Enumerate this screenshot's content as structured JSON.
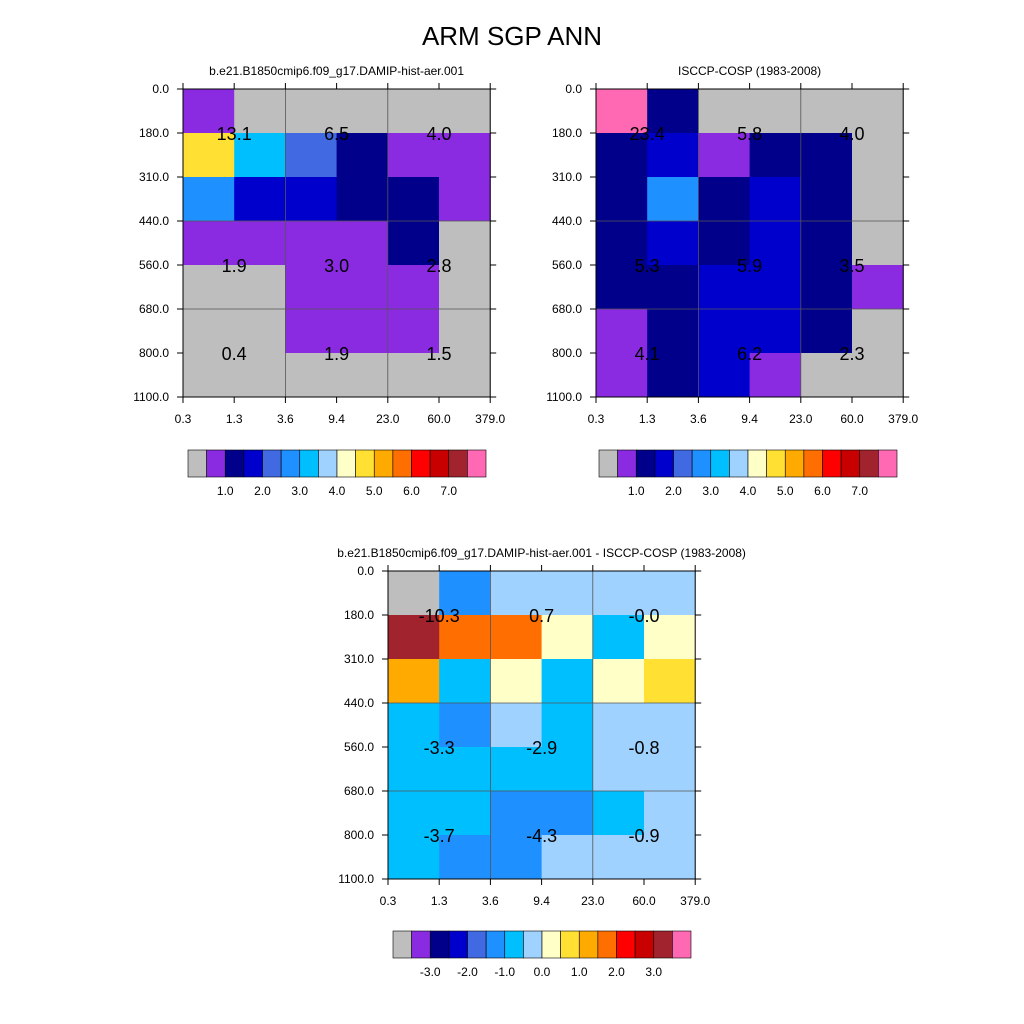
{
  "title": "ARM SGP ANN",
  "chart_data": [
    {
      "type": "heatmap",
      "title": "b.e21.B1850cmip6.f09_g17.DAMIP-hist-aer.001",
      "x_ticks": [
        "0.3",
        "1.3",
        "3.6",
        "9.4",
        "23.0",
        "60.0",
        "379.0"
      ],
      "y_ticks": [
        "0.0",
        "180.0",
        "310.0",
        "440.0",
        "560.0",
        "680.0",
        "800.0",
        "1100.0"
      ],
      "cells": [
        [
          "#bebebe",
          "#bebebe",
          "#bebebe",
          "#bebebe",
          "#bebebe",
          "#bebebe"
        ],
        [
          "#ffe033",
          "#00bfff",
          "#4169e1",
          "#00008b",
          "#8a2be2",
          "#8a2be2"
        ],
        [
          "#1e90ff",
          "#0000cd",
          "#0000cd",
          "#00008b",
          "#00008b",
          "#8a2be2"
        ],
        [
          "#8a2be2",
          "#8a2be2",
          "#8a2be2",
          "#8a2be2",
          "#00008b",
          "#bebebe"
        ],
        [
          "#bebebe",
          "#bebebe",
          "#8a2be2",
          "#8a2be2",
          "#8a2be2",
          "#bebebe"
        ],
        [
          "#bebebe",
          "#bebebe",
          "#8a2be2",
          "#8a2be2",
          "#8a2be2",
          "#bebebe"
        ],
        [
          "#bebebe",
          "#bebebe",
          "#bebebe",
          "#bebebe",
          "#bebebe",
          "#bebebe"
        ]
      ],
      "first_cell": "#8a2be2",
      "labels": [
        {
          "text": "13.1",
          "col": 1,
          "row": 1
        },
        {
          "text": "6.5",
          "col": 3,
          "row": 1
        },
        {
          "text": "4.0",
          "col": 5,
          "row": 1
        },
        {
          "text": "1.9",
          "col": 1,
          "row": 4
        },
        {
          "text": "3.0",
          "col": 3,
          "row": 4
        },
        {
          "text": "2.8",
          "col": 5,
          "row": 4
        },
        {
          "text": "0.4",
          "col": 1,
          "row": 6
        },
        {
          "text": "1.9",
          "col": 3,
          "row": 6
        },
        {
          "text": "1.5",
          "col": 5,
          "row": 6
        }
      ],
      "colorbar": {
        "colors": [
          "#bebebe",
          "#8a2be2",
          "#00008b",
          "#0000cd",
          "#4169e1",
          "#1e90ff",
          "#00bfff",
          "#a0d2ff",
          "#ffffc8",
          "#ffe033",
          "#ffaa00",
          "#ff6e00",
          "#ff0000",
          "#c80000",
          "#a0232d",
          "#ff69b4"
        ],
        "labels": [
          "1.0",
          "2.0",
          "3.0",
          "4.0",
          "5.0",
          "6.0",
          "7.0"
        ]
      }
    },
    {
      "type": "heatmap",
      "title": "ISCCP-COSP (1983-2008)",
      "x_ticks": [
        "0.3",
        "1.3",
        "3.6",
        "9.4",
        "23.0",
        "60.0",
        "379.0"
      ],
      "y_ticks": [
        "0.0",
        "180.0",
        "310.0",
        "440.0",
        "560.0",
        "680.0",
        "800.0",
        "1100.0"
      ],
      "cells": [
        [
          "#ff69b4",
          "#00008b",
          "#bebebe",
          "#bebebe",
          "#bebebe",
          "#bebebe"
        ],
        [
          "#00008b",
          "#0000cd",
          "#8a2be2",
          "#00008b",
          "#00008b",
          "#bebebe"
        ],
        [
          "#00008b",
          "#1e90ff",
          "#00008b",
          "#0000cd",
          "#00008b",
          "#bebebe"
        ],
        [
          "#00008b",
          "#0000cd",
          "#00008b",
          "#0000cd",
          "#00008b",
          "#bebebe"
        ],
        [
          "#00008b",
          "#00008b",
          "#0000cd",
          "#0000cd",
          "#00008b",
          "#8a2be2"
        ],
        [
          "#8a2be2",
          "#00008b",
          "#0000cd",
          "#0000cd",
          "#00008b",
          "#bebebe"
        ],
        [
          "#8a2be2",
          "#00008b",
          "#0000cd",
          "#8a2be2",
          "#bebebe",
          "#bebebe"
        ]
      ],
      "labels": [
        {
          "text": "23.4",
          "col": 1,
          "row": 1
        },
        {
          "text": "5.8",
          "col": 3,
          "row": 1
        },
        {
          "text": "4.0",
          "col": 5,
          "row": 1
        },
        {
          "text": "5.3",
          "col": 1,
          "row": 4
        },
        {
          "text": "5.9",
          "col": 3,
          "row": 4
        },
        {
          "text": "3.5",
          "col": 5,
          "row": 4
        },
        {
          "text": "4.1",
          "col": 1,
          "row": 6
        },
        {
          "text": "6.2",
          "col": 3,
          "row": 6
        },
        {
          "text": "2.3",
          "col": 5,
          "row": 6
        }
      ],
      "colorbar": {
        "colors": [
          "#bebebe",
          "#8a2be2",
          "#00008b",
          "#0000cd",
          "#4169e1",
          "#1e90ff",
          "#00bfff",
          "#a0d2ff",
          "#ffffc8",
          "#ffe033",
          "#ffaa00",
          "#ff6e00",
          "#ff0000",
          "#c80000",
          "#a0232d",
          "#ff69b4"
        ],
        "labels": [
          "1.0",
          "2.0",
          "3.0",
          "4.0",
          "5.0",
          "6.0",
          "7.0"
        ]
      }
    },
    {
      "type": "heatmap",
      "title": "b.e21.B1850cmip6.f09_g17.DAMIP-hist-aer.001 - ISCCP-COSP (1983-2008)",
      "x_ticks": [
        "0.3",
        "1.3",
        "3.6",
        "9.4",
        "23.0",
        "60.0",
        "379.0"
      ],
      "y_ticks": [
        "0.0",
        "180.0",
        "310.0",
        "440.0",
        "560.0",
        "680.0",
        "800.0",
        "1100.0"
      ],
      "cells": [
        [
          "#bebebe",
          "#1e90ff",
          "#a0d2ff",
          "#a0d2ff",
          "#a0d2ff",
          "#a0d2ff"
        ],
        [
          "#a0232d",
          "#ff6e00",
          "#ff6e00",
          "#ffffc8",
          "#00bfff",
          "#ffffc8"
        ],
        [
          "#ffaa00",
          "#00bfff",
          "#ffffc8",
          "#00bfff",
          "#ffffc8",
          "#ffe033"
        ],
        [
          "#00bfff",
          "#1e90ff",
          "#a0d2ff",
          "#00bfff",
          "#a0d2ff",
          "#a0d2ff"
        ],
        [
          "#00bfff",
          "#00bfff",
          "#00bfff",
          "#00bfff",
          "#a0d2ff",
          "#a0d2ff"
        ],
        [
          "#00bfff",
          "#00bfff",
          "#1e90ff",
          "#1e90ff",
          "#00bfff",
          "#a0d2ff"
        ],
        [
          "#00bfff",
          "#1e90ff",
          "#1e90ff",
          "#a0d2ff",
          "#a0d2ff",
          "#a0d2ff"
        ]
      ],
      "labels": [
        {
          "text": "-10.3",
          "col": 1,
          "row": 1
        },
        {
          "text": "0.7",
          "col": 3,
          "row": 1
        },
        {
          "text": "-0.0",
          "col": 5,
          "row": 1
        },
        {
          "text": "-3.3",
          "col": 1,
          "row": 4
        },
        {
          "text": "-2.9",
          "col": 3,
          "row": 4
        },
        {
          "text": "-0.8",
          "col": 5,
          "row": 4
        },
        {
          "text": "-3.7",
          "col": 1,
          "row": 6
        },
        {
          "text": "-4.3",
          "col": 3,
          "row": 6
        },
        {
          "text": "-0.9",
          "col": 5,
          "row": 6
        }
      ],
      "colorbar": {
        "colors": [
          "#bebebe",
          "#8a2be2",
          "#00008b",
          "#0000cd",
          "#4169e1",
          "#1e90ff",
          "#00bfff",
          "#a0d2ff",
          "#ffffc8",
          "#ffe033",
          "#ffaa00",
          "#ff6e00",
          "#ff0000",
          "#c80000",
          "#a0232d",
          "#ff69b4"
        ],
        "labels": [
          "-3.0",
          "-2.0",
          "-1.0",
          "0.0",
          "1.0",
          "2.0",
          "3.0"
        ]
      }
    }
  ]
}
